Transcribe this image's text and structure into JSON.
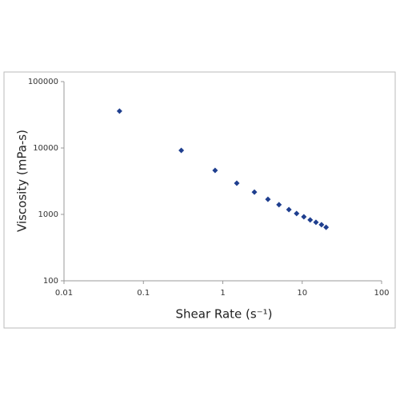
{
  "chart_data": {
    "type": "scatter",
    "x_label": "Shear Rate (s⁻¹)",
    "y_label": "Viscosity (mPa-s)",
    "x": [
      0.05,
      0.3,
      0.8,
      1.5,
      2.5,
      3.7,
      5.1,
      6.8,
      8.5,
      10.5,
      12.6,
      14.9,
      17.5,
      20
    ],
    "values": [
      36000,
      9200,
      4600,
      2950,
      2170,
      1690,
      1400,
      1180,
      1030,
      920,
      825,
      760,
      700,
      640
    ],
    "color": "#1f3f8f",
    "xlim": [
      0.01,
      100
    ],
    "ylim": [
      100,
      100000
    ],
    "xticks": [
      0.01,
      0.1,
      1,
      10,
      100
    ],
    "yticks": [
      100,
      1000,
      10000,
      100000
    ],
    "log_x": true,
    "log_y": true
  }
}
